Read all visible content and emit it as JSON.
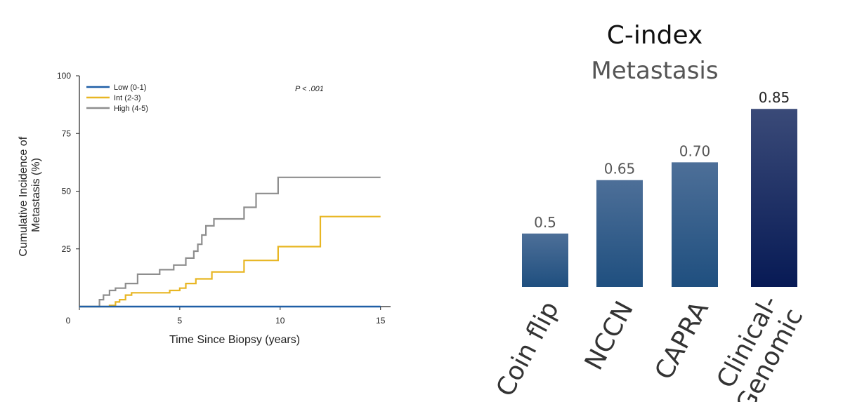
{
  "chart_data": [
    {
      "type": "line",
      "step": true,
      "xlabel": "Time Since Biopsy (years)",
      "ylabel": "Cumulative Incidence of Metastasis (%)",
      "ylabel_lines": [
        "Cumulative Incidence of",
        "Metastasis (%)"
      ],
      "xlim": [
        0,
        15.5
      ],
      "ylim": [
        0,
        100
      ],
      "x_ticks": [
        0,
        5,
        10,
        15
      ],
      "y_ticks": [
        25,
        50,
        75,
        100
      ],
      "annotation": "P < .001",
      "legend_placement": "top-left",
      "grid": false,
      "series": [
        {
          "name": "Low (0-1)",
          "color": "#1f5fa6",
          "points": [
            [
              0,
              0
            ],
            [
              15,
              0
            ]
          ]
        },
        {
          "name": "Int (2-3)",
          "color": "#e8b623",
          "points": [
            [
              0,
              0
            ],
            [
              1.5,
              0
            ],
            [
              1.5,
              0.5
            ],
            [
              1.8,
              0.5
            ],
            [
              1.8,
              2
            ],
            [
              2.0,
              2
            ],
            [
              2.0,
              3
            ],
            [
              2.3,
              3
            ],
            [
              2.3,
              5
            ],
            [
              2.6,
              5
            ],
            [
              2.6,
              6
            ],
            [
              4.5,
              6
            ],
            [
              4.5,
              7
            ],
            [
              5.0,
              7
            ],
            [
              5.0,
              8
            ],
            [
              5.3,
              8
            ],
            [
              5.3,
              10
            ],
            [
              5.8,
              10
            ],
            [
              5.8,
              12
            ],
            [
              6.6,
              12
            ],
            [
              6.6,
              15
            ],
            [
              8.2,
              15
            ],
            [
              8.2,
              20
            ],
            [
              9.9,
              20
            ],
            [
              9.9,
              26
            ],
            [
              12.0,
              26
            ],
            [
              12.0,
              39
            ],
            [
              15,
              39
            ]
          ]
        },
        {
          "name": "High (4-5)",
          "color": "#8e8e8e",
          "points": [
            [
              0,
              0
            ],
            [
              1.0,
              0
            ],
            [
              1.0,
              3
            ],
            [
              1.2,
              3
            ],
            [
              1.2,
              5
            ],
            [
              1.5,
              5
            ],
            [
              1.5,
              7
            ],
            [
              1.8,
              7
            ],
            [
              1.8,
              8
            ],
            [
              2.3,
              8
            ],
            [
              2.3,
              10
            ],
            [
              2.9,
              10
            ],
            [
              2.9,
              14
            ],
            [
              4.0,
              14
            ],
            [
              4.0,
              16
            ],
            [
              4.7,
              16
            ],
            [
              4.7,
              18
            ],
            [
              5.3,
              18
            ],
            [
              5.3,
              21
            ],
            [
              5.7,
              21
            ],
            [
              5.7,
              24
            ],
            [
              5.9,
              24
            ],
            [
              5.9,
              27
            ],
            [
              6.1,
              27
            ],
            [
              6.1,
              31
            ],
            [
              6.3,
              31
            ],
            [
              6.3,
              35
            ],
            [
              6.7,
              35
            ],
            [
              6.7,
              38
            ],
            [
              8.2,
              38
            ],
            [
              8.2,
              43
            ],
            [
              8.8,
              43
            ],
            [
              8.8,
              49
            ],
            [
              9.9,
              49
            ],
            [
              9.9,
              56
            ],
            [
              15,
              56
            ]
          ]
        }
      ]
    },
    {
      "type": "bar",
      "title": "C-index",
      "subtitle": "Metastasis",
      "categories": [
        "Coin flip",
        "NCCN",
        "CAPRA",
        "Clinical-Genomic"
      ],
      "category_lines": [
        [
          "Coin flip"
        ],
        [
          "NCCN"
        ],
        [
          "CAPRA"
        ],
        [
          "Clinical-",
          "Genomic"
        ]
      ],
      "values": [
        0.5,
        0.65,
        0.7,
        0.85
      ],
      "value_labels": [
        "0.5",
        "0.65",
        "0.70",
        "0.85"
      ],
      "ylim": [
        0.35,
        0.88
      ],
      "colors": [
        "#2b5c8a",
        "#2b5c8a",
        "#2b5c8a",
        "#0f1f55"
      ]
    }
  ]
}
